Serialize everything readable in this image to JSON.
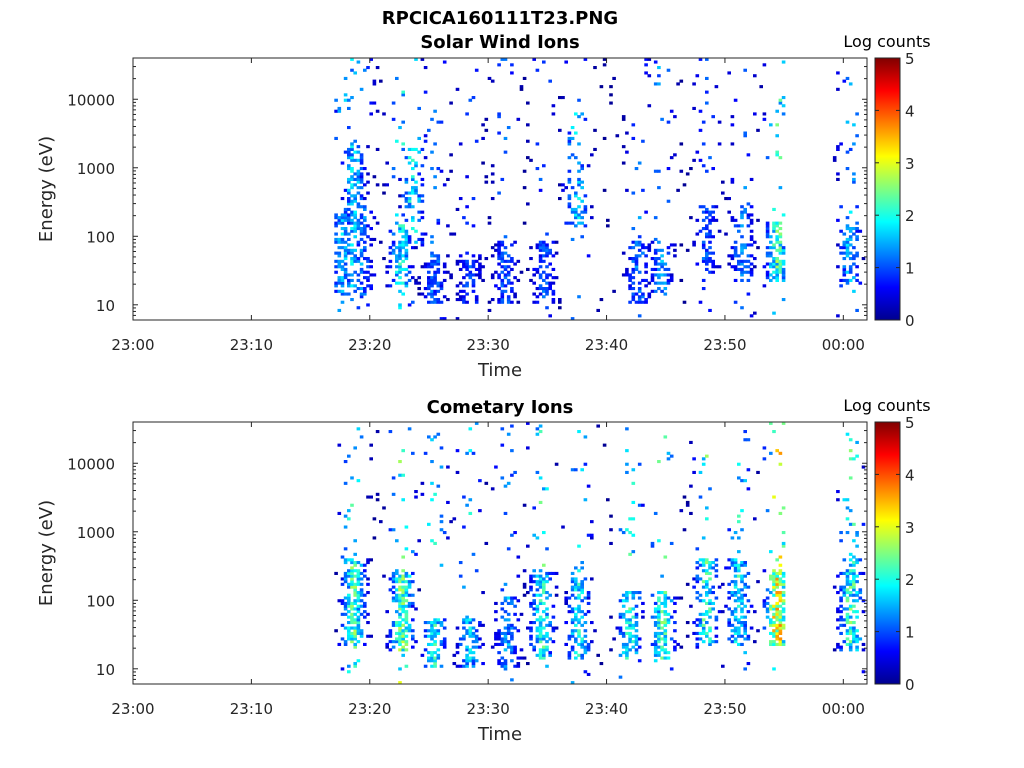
{
  "figure_title": "RPCICA160111T23.PNG",
  "colorbar": {
    "label": "Log counts",
    "ticks": [
      "0",
      "1",
      "2",
      "3",
      "4",
      "5"
    ],
    "range": [
      0,
      5
    ],
    "colormap": "jet"
  },
  "chart_data": [
    {
      "type": "heatmap",
      "title": "Solar Wind Ions",
      "xlabel": "Time",
      "ylabel": "Energy (eV)",
      "x_ticks": [
        "23:00",
        "23:10",
        "23:20",
        "23:30",
        "23:40",
        "23:50",
        "00:00"
      ],
      "y_ticks": [
        "10",
        "100",
        "1000",
        "10000"
      ],
      "y_scale": "log",
      "xlim": [
        "23:00",
        "00:02"
      ],
      "ylim": [
        6,
        40000
      ],
      "data_start": "23:17",
      "data_gap": [
        "23:55",
        "23:59"
      ],
      "clusters": [
        {
          "t": 17.6,
          "e_lo": 20,
          "e_hi": 150,
          "peak": 1.6,
          "density": 0.55
        },
        {
          "t": 18.5,
          "e_lo": 25,
          "e_hi": 1500,
          "peak": 1.8,
          "density": 0.45
        },
        {
          "t": 19.2,
          "e_lo": 20,
          "e_hi": 200,
          "peak": 1.3,
          "density": 0.5
        },
        {
          "t": 22.5,
          "e_lo": 25,
          "e_hi": 120,
          "peak": 2.0,
          "density": 0.6
        },
        {
          "t": 23.5,
          "e_lo": 100,
          "e_hi": 1500,
          "peak": 2.0,
          "density": 0.35
        },
        {
          "t": 25.3,
          "e_lo": 15,
          "e_hi": 40,
          "peak": 1.2,
          "density": 0.6
        },
        {
          "t": 28.3,
          "e_lo": 15,
          "e_hi": 40,
          "peak": 1.0,
          "density": 0.6
        },
        {
          "t": 31.3,
          "e_lo": 15,
          "e_hi": 60,
          "peak": 1.1,
          "density": 0.55
        },
        {
          "t": 34.6,
          "e_lo": 15,
          "e_hi": 60,
          "peak": 1.1,
          "density": 0.5
        },
        {
          "t": 37.3,
          "e_lo": 200,
          "e_hi": 500,
          "peak": 1.8,
          "density": 0.5
        },
        {
          "t": 42.5,
          "e_lo": 15,
          "e_hi": 60,
          "peak": 1.3,
          "density": 0.5
        },
        {
          "t": 44.5,
          "e_lo": 20,
          "e_hi": 60,
          "peak": 1.5,
          "density": 0.5
        },
        {
          "t": 48.3,
          "e_lo": 40,
          "e_hi": 200,
          "peak": 1.1,
          "density": 0.45
        },
        {
          "t": 51.3,
          "e_lo": 30,
          "e_hi": 200,
          "peak": 1.3,
          "density": 0.5
        },
        {
          "t": 54.3,
          "e_lo": 30,
          "e_hi": 120,
          "peak": 2.4,
          "density": 0.65
        },
        {
          "t": 60.4,
          "e_lo": 25,
          "e_hi": 100,
          "peak": 1.6,
          "density": 0.55
        }
      ]
    },
    {
      "type": "heatmap",
      "title": "Cometary Ions",
      "xlabel": "Time",
      "ylabel": "Energy (eV)",
      "x_ticks": [
        "23:00",
        "23:10",
        "23:20",
        "23:30",
        "23:40",
        "23:50",
        "00:00"
      ],
      "y_ticks": [
        "10",
        "100",
        "1000",
        "10000"
      ],
      "y_scale": "log",
      "xlim": [
        "23:00",
        "00:02"
      ],
      "ylim": [
        6,
        40000
      ],
      "data_start": "23:17",
      "data_gap": [
        "23:55",
        "23:59"
      ],
      "clusters": [
        {
          "t": 18.5,
          "e_lo": 30,
          "e_hi": 300,
          "peak": 2.5,
          "density": 0.75
        },
        {
          "t": 22.6,
          "e_lo": 25,
          "e_hi": 200,
          "peak": 2.7,
          "density": 0.7
        },
        {
          "t": 25.3,
          "e_lo": 15,
          "e_hi": 40,
          "peak": 2.2,
          "density": 0.6
        },
        {
          "t": 28.3,
          "e_lo": 15,
          "e_hi": 40,
          "peak": 1.8,
          "density": 0.6
        },
        {
          "t": 31.5,
          "e_lo": 15,
          "e_hi": 80,
          "peak": 1.5,
          "density": 0.55
        },
        {
          "t": 34.4,
          "e_lo": 20,
          "e_hi": 200,
          "peak": 2.2,
          "density": 0.6
        },
        {
          "t": 37.5,
          "e_lo": 20,
          "e_hi": 150,
          "peak": 2.0,
          "density": 0.55
        },
        {
          "t": 41.8,
          "e_lo": 20,
          "e_hi": 100,
          "peak": 2.2,
          "density": 0.55
        },
        {
          "t": 44.6,
          "e_lo": 20,
          "e_hi": 100,
          "peak": 2.4,
          "density": 0.6
        },
        {
          "t": 48.3,
          "e_lo": 30,
          "e_hi": 300,
          "peak": 2.3,
          "density": 0.6
        },
        {
          "t": 51.0,
          "e_lo": 30,
          "e_hi": 300,
          "peak": 2.1,
          "density": 0.6
        },
        {
          "t": 54.3,
          "e_lo": 30,
          "e_hi": 200,
          "peak": 3.6,
          "density": 0.75
        },
        {
          "t": 60.5,
          "e_lo": 25,
          "e_hi": 300,
          "peak": 2.4,
          "density": 0.65
        }
      ]
    }
  ]
}
